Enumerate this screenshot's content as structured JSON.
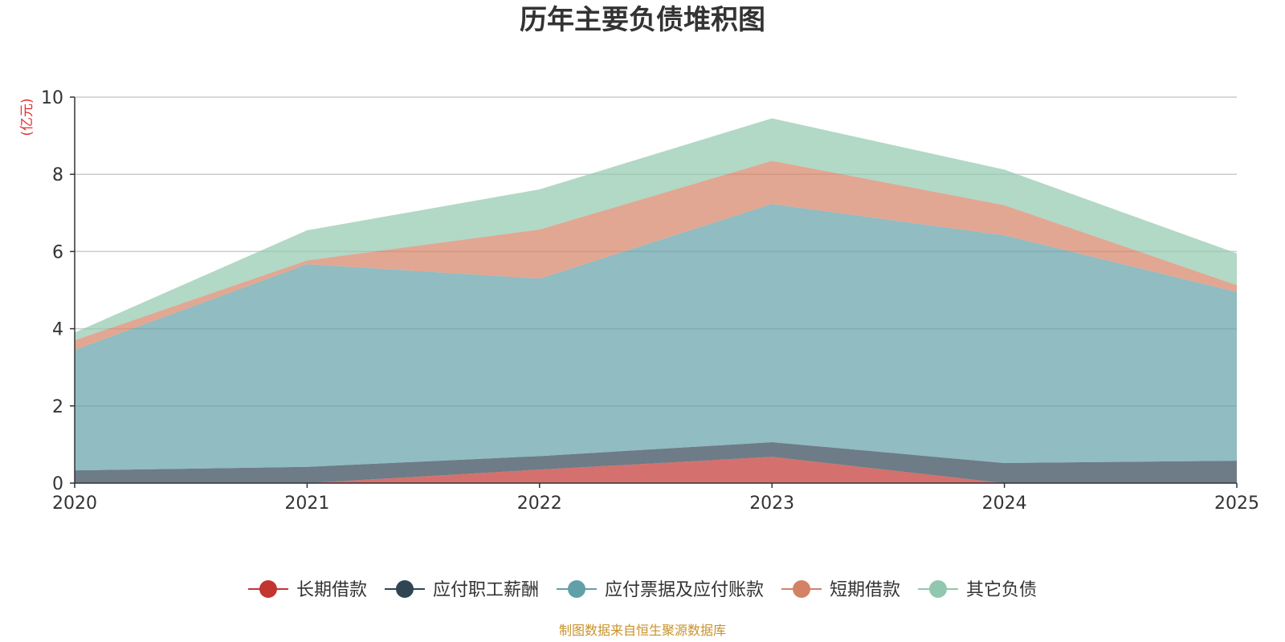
{
  "chart_data": {
    "type": "area",
    "stacked": true,
    "title": "历年主要负债堆积图",
    "ylabel": "(亿元)",
    "xlabel": "",
    "x": [
      "2020",
      "2021",
      "2022",
      "2023",
      "2024",
      "2025"
    ],
    "ylim": [
      0,
      10
    ],
    "yticks": [
      0,
      2,
      4,
      6,
      8,
      10
    ],
    "grid": true,
    "legend_position": "bottom",
    "source": "制图数据来自恒生聚源数据库",
    "series": [
      {
        "name": "长期借款",
        "color": "#c23531",
        "values": [
          0,
          0,
          0.35,
          0.68,
          0,
          0
        ]
      },
      {
        "name": "应付职工薪酬",
        "color": "#2f4554",
        "values": [
          0.33,
          0.42,
          0.35,
          0.38,
          0.52,
          0.58
        ]
      },
      {
        "name": "应付票据及应付账款",
        "color": "#61a0a8",
        "values": [
          3.12,
          5.25,
          4.6,
          6.17,
          5.9,
          4.37
        ]
      },
      {
        "name": "短期借款",
        "color": "#d48265",
        "values": [
          0.25,
          0.1,
          1.27,
          1.12,
          0.78,
          0.18
        ]
      },
      {
        "name": "其它负债",
        "color": "#91c7ae",
        "values": [
          0.2,
          0.78,
          1.04,
          1.1,
          0.92,
          0.82
        ]
      }
    ]
  }
}
